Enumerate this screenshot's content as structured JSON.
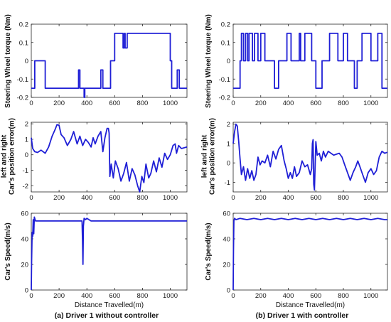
{
  "chart_data": [
    {
      "type": "line",
      "panel": "a-1",
      "ylabel": "Steering Wheel torque (Nm)",
      "xlim": [
        0,
        1120
      ],
      "ylim": [
        -0.2,
        0.2
      ],
      "xticks": [
        0,
        200,
        400,
        600,
        800,
        1000
      ],
      "yticks": [
        -0.2,
        -0.1,
        0,
        0.1,
        0.2
      ],
      "ytick_labels": [
        "-0.2",
        "-0.1",
        "0",
        "0.1",
        "0.2"
      ],
      "color": "#1f1fd6",
      "series": [
        {
          "x": [
            0,
            25,
            25,
            100,
            100,
            340,
            340,
            350,
            350,
            380,
            380,
            385,
            385,
            500,
            500,
            515,
            515,
            570,
            570,
            600,
            600,
            660,
            660,
            670,
            670,
            675,
            675,
            690,
            690,
            700,
            700,
            1000,
            1000,
            1010,
            1010,
            1050,
            1050,
            1065,
            1065,
            1120
          ],
          "y": [
            -0.15,
            -0.15,
            0,
            0,
            -0.15,
            -0.15,
            -0.05,
            -0.05,
            -0.15,
            -0.15,
            -0.2,
            -0.2,
            -0.15,
            -0.15,
            -0.05,
            -0.05,
            -0.15,
            -0.15,
            0,
            0,
            0.15,
            0.15,
            0.07,
            0.07,
            0.15,
            0.15,
            0.07,
            0.07,
            0.15,
            0.15,
            0.15,
            0.15,
            0,
            0,
            -0.15,
            -0.15,
            -0.05,
            -0.05,
            -0.15,
            -0.15
          ]
        }
      ]
    },
    {
      "type": "line",
      "panel": "a-2",
      "ylabel": "left and right Car's position error(m)",
      "xlim": [
        0,
        1120
      ],
      "ylim": [
        -2.4,
        2.1
      ],
      "xticks": [
        0,
        200,
        400,
        600,
        800,
        1000
      ],
      "yticks": [
        -2,
        -1,
        0,
        1,
        2
      ],
      "ytick_labels": [
        "-2",
        "-1",
        "0",
        "1",
        "2"
      ],
      "color": "#1f1fd6",
      "series": [
        {
          "x": [
            0,
            10,
            25,
            45,
            70,
            100,
            125,
            150,
            170,
            185,
            200,
            215,
            235,
            260,
            285,
            305,
            330,
            350,
            370,
            390,
            410,
            430,
            445,
            460,
            480,
            500,
            515,
            530,
            545,
            555,
            560,
            565,
            575,
            590,
            605,
            625,
            645,
            665,
            685,
            705,
            725,
            745,
            765,
            780,
            795,
            810,
            825,
            845,
            860,
            880,
            900,
            920,
            940,
            960,
            980,
            1000,
            1020,
            1035,
            1045,
            1060,
            1080,
            1100,
            1120
          ],
          "y": [
            1.1,
            0.4,
            0.2,
            0.15,
            0.3,
            0.1,
            0.5,
            1.2,
            1.6,
            1.95,
            1.9,
            1.3,
            1.1,
            0.6,
            1.0,
            1.5,
            0.7,
            1.2,
            0.6,
            1.0,
            0.8,
            0.5,
            1.1,
            0.7,
            1.2,
            1.5,
            0.2,
            1.1,
            1.7,
            1.7,
            1.4,
            -1.4,
            -0.6,
            -1.5,
            -0.4,
            -0.9,
            -1.7,
            -1.2,
            -0.5,
            -1.7,
            -0.9,
            -1.3,
            -2.0,
            -2.4,
            -1.4,
            -1.8,
            -0.6,
            -1.5,
            -1.2,
            -0.4,
            -1.1,
            -0.2,
            -0.8,
            0.1,
            -0.3,
            0.0,
            0.6,
            0.7,
            0.1,
            0.6,
            0.4,
            0.45,
            0.5
          ]
        }
      ]
    },
    {
      "type": "line",
      "panel": "a-3",
      "ylabel": "Car's Speed(m/s)",
      "xlabel": "Distance Travelled(m)",
      "xlim": [
        0,
        1120
      ],
      "ylim": [
        0,
        60
      ],
      "xticks": [
        0,
        200,
        400,
        600,
        800,
        1000
      ],
      "yticks": [
        0,
        20,
        40,
        60
      ],
      "ytick_labels": [
        "0",
        "20",
        "40",
        "60"
      ],
      "color": "#1f1fd6",
      "series": [
        {
          "x": [
            0,
            2,
            6,
            10,
            14,
            18,
            22,
            30,
            40,
            60,
            100,
            150,
            200,
            300,
            340,
            350,
            365,
            368,
            372,
            375,
            380,
            390,
            400,
            415,
            430,
            450,
            500,
            550,
            600,
            700,
            800,
            900,
            1000,
            1120
          ],
          "y": [
            0,
            20,
            45,
            42,
            55,
            44,
            57,
            54,
            54,
            54,
            54,
            54,
            54,
            54,
            54,
            54,
            54,
            40,
            20,
            50,
            56,
            55,
            56,
            55,
            54,
            54,
            54,
            54,
            54,
            54,
            54,
            54,
            54,
            54
          ]
        }
      ]
    },
    {
      "type": "line",
      "panel": "b-1",
      "ylabel": "Steering Wheel torque (Nm)",
      "xlim": [
        0,
        1120
      ],
      "ylim": [
        -0.2,
        0.2
      ],
      "xticks": [
        0,
        200,
        400,
        600,
        800,
        1000
      ],
      "yticks": [
        -0.2,
        -0.1,
        0,
        0.1,
        0.2
      ],
      "ytick_labels": [
        "-0.2",
        "-0.1",
        "0",
        "0.1",
        "0.2"
      ],
      "color": "#1f1fd6",
      "series": [
        {
          "x": [
            0,
            50,
            50,
            60,
            60,
            75,
            75,
            90,
            90,
            105,
            105,
            115,
            115,
            140,
            140,
            155,
            155,
            180,
            180,
            200,
            200,
            230,
            230,
            300,
            300,
            330,
            330,
            390,
            390,
            420,
            420,
            480,
            480,
            490,
            490,
            520,
            520,
            570,
            570,
            600,
            600,
            645,
            645,
            700,
            700,
            760,
            760,
            800,
            800,
            830,
            830,
            880,
            880,
            900,
            900,
            935,
            935,
            1000,
            1000,
            1050,
            1050,
            1080,
            1080,
            1120
          ],
          "y": [
            -0.15,
            -0.15,
            0,
            0,
            0.15,
            0.15,
            0,
            0,
            0.15,
            0.15,
            0,
            0,
            0.15,
            0.15,
            0,
            0,
            0.15,
            0.15,
            0,
            0,
            0.15,
            0.15,
            0,
            0,
            -0.15,
            -0.15,
            0,
            0,
            0.15,
            0.15,
            0,
            0,
            0.15,
            0.15,
            0,
            0,
            0.15,
            0.15,
            0,
            0,
            -0.15,
            -0.15,
            0,
            0,
            0.15,
            0.15,
            0,
            0,
            0.15,
            0.15,
            0,
            0,
            -0.15,
            -0.15,
            0,
            0,
            0.15,
            0.15,
            0,
            0,
            0.15,
            0.15,
            -0.15,
            -0.15
          ]
        }
      ]
    },
    {
      "type": "line",
      "panel": "b-2",
      "ylabel": "left and right Car's position error(m)",
      "xlim": [
        0,
        1120
      ],
      "ylim": [
        -1.5,
        2.1
      ],
      "xticks": [
        0,
        200,
        400,
        600,
        800,
        1000
      ],
      "yticks": [
        -1,
        0,
        1,
        2
      ],
      "ytick_labels": [
        "-1",
        "0",
        "1",
        "2"
      ],
      "color": "#1f1fd6",
      "series": [
        {
          "x": [
            0,
            10,
            20,
            30,
            40,
            50,
            60,
            75,
            90,
            105,
            120,
            135,
            150,
            165,
            180,
            195,
            210,
            230,
            250,
            270,
            290,
            310,
            330,
            350,
            370,
            385,
            400,
            415,
            430,
            445,
            460,
            480,
            500,
            520,
            540,
            560,
            570,
            575,
            580,
            585,
            590,
            600,
            610,
            625,
            640,
            655,
            670,
            690,
            710,
            730,
            750,
            770,
            790,
            810,
            830,
            850,
            870,
            890,
            905,
            920,
            940,
            960,
            980,
            1000,
            1020,
            1040,
            1060,
            1080,
            1100,
            1120
          ],
          "y": [
            1.0,
            1.6,
            2.0,
            1.9,
            1.1,
            0.2,
            -0.6,
            -0.2,
            -0.9,
            -0.3,
            -0.8,
            -0.4,
            -0.9,
            -0.6,
            0.3,
            -0.1,
            0.1,
            0.0,
            0.4,
            -0.2,
            0.6,
            0.2,
            0.7,
            0.9,
            0.1,
            -0.3,
            -0.8,
            -0.5,
            -0.8,
            -0.2,
            -0.7,
            -0.5,
            0.1,
            -0.2,
            -0.1,
            -0.6,
            -0.3,
            1.0,
            1.2,
            -1.1,
            -1.4,
            1.1,
            0.4,
            0.5,
            0.1,
            0.6,
            0.3,
            0.6,
            0.5,
            0.4,
            0.45,
            0.5,
            0.3,
            -0.1,
            -0.5,
            -0.9,
            -0.5,
            -0.2,
            0.1,
            -0.2,
            -0.6,
            -1.0,
            -0.5,
            -0.3,
            -0.6,
            -0.4,
            0.3,
            0.6,
            0.5,
            0.55
          ]
        }
      ]
    },
    {
      "type": "line",
      "panel": "b-3",
      "ylabel": "Car's Speed(m/s)",
      "xlabel": "Distance Travelled(m)",
      "xlim": [
        0,
        1120
      ],
      "ylim": [
        0,
        60
      ],
      "xticks": [
        0,
        200,
        400,
        600,
        800,
        1000
      ],
      "yticks": [
        0,
        20,
        40,
        60
      ],
      "ytick_labels": [
        "0",
        "20",
        "40",
        "60"
      ],
      "color": "#1f1fd6",
      "series": [
        {
          "x": [
            0,
            2,
            5,
            10,
            20,
            50,
            100,
            150,
            200,
            250,
            300,
            350,
            400,
            450,
            500,
            550,
            600,
            650,
            700,
            750,
            800,
            850,
            900,
            950,
            1000,
            1050,
            1100,
            1120
          ],
          "y": [
            0,
            30,
            54,
            56,
            55,
            56,
            55,
            56,
            55,
            56,
            55,
            56,
            55,
            56,
            55,
            56,
            55,
            56,
            55,
            56,
            55,
            56,
            55,
            56,
            55,
            56,
            55,
            55
          ]
        }
      ]
    }
  ],
  "captions": {
    "left": "(a) Driver 1 without controller",
    "right": "(b) Driver 1 with controller"
  }
}
